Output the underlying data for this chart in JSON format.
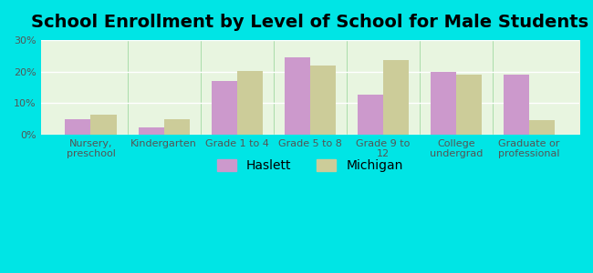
{
  "title": "School Enrollment by Level of School for Male Students",
  "categories": [
    "Nursery,\npreschool",
    "Kindergarten",
    "Grade 1 to 4",
    "Grade 5 to 8",
    "Grade 9 to\n12",
    "College\nundergrad",
    "Graduate or\nprofessional"
  ],
  "haslett_values": [
    5.0,
    2.2,
    17.0,
    24.5,
    12.7,
    20.0,
    19.0
  ],
  "michigan_values": [
    6.2,
    5.0,
    20.2,
    21.8,
    23.5,
    19.0,
    4.7
  ],
  "haslett_color": "#cc99cc",
  "michigan_color": "#cccc99",
  "background_color": "#00e5e5",
  "plot_bg_start": "#f5fff0",
  "plot_bg_end": "#fffff5",
  "title_fontsize": 14,
  "tick_label_fontsize": 8,
  "legend_fontsize": 10,
  "ylim": [
    0,
    30
  ],
  "yticks": [
    0,
    10,
    20,
    30
  ],
  "bar_width": 0.35
}
